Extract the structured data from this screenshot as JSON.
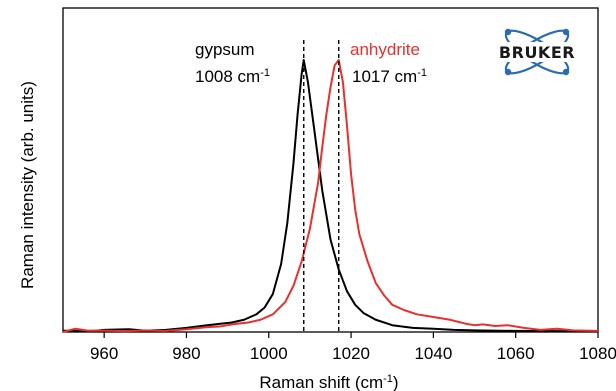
{
  "chart_data": {
    "type": "line",
    "xlabel": "Raman shift (cm",
    "xlabel_sup": "-1",
    "xlabel_tail": ")",
    "ylabel": "Raman intensity (arb. units)",
    "xlim": [
      950,
      1080
    ],
    "ylim": [
      0,
      1.0
    ],
    "x_ticks": [
      960,
      980,
      1000,
      1020,
      1040,
      1060,
      1080
    ],
    "grid": false,
    "series": [
      {
        "name": "gypsum",
        "color": "#000000",
        "points": [
          [
            950,
            0.005
          ],
          [
            956,
            0.002
          ],
          [
            960,
            0.008
          ],
          [
            966,
            0.01
          ],
          [
            970,
            0.005
          ],
          [
            975,
            0.008
          ],
          [
            980,
            0.015
          ],
          [
            985,
            0.025
          ],
          [
            988,
            0.03
          ],
          [
            991,
            0.035
          ],
          [
            994,
            0.045
          ],
          [
            997,
            0.065
          ],
          [
            999,
            0.09
          ],
          [
            1001,
            0.14
          ],
          [
            1003,
            0.25
          ],
          [
            1004.5,
            0.4
          ],
          [
            1006,
            0.62
          ],
          [
            1007,
            0.8
          ],
          [
            1008,
            0.95
          ],
          [
            1008.5,
            1.0
          ],
          [
            1009.5,
            0.92
          ],
          [
            1011,
            0.75
          ],
          [
            1013,
            0.52
          ],
          [
            1015,
            0.34
          ],
          [
            1017,
            0.23
          ],
          [
            1019,
            0.15
          ],
          [
            1021,
            0.1
          ],
          [
            1023,
            0.07
          ],
          [
            1026,
            0.045
          ],
          [
            1030,
            0.025
          ],
          [
            1035,
            0.015
          ],
          [
            1040,
            0.012
          ],
          [
            1045,
            0.008
          ],
          [
            1050,
            0.006
          ],
          [
            1060,
            0.004
          ],
          [
            1070,
            0.003
          ],
          [
            1080,
            0.002
          ]
        ]
      },
      {
        "name": "anhydrite",
        "color": "#e8312f",
        "points": [
          [
            950,
            0.0
          ],
          [
            953,
            0.012
          ],
          [
            956,
            0.005
          ],
          [
            960,
            0.005
          ],
          [
            965,
            0.003
          ],
          [
            970,
            0.006
          ],
          [
            975,
            0.004
          ],
          [
            980,
            0.01
          ],
          [
            985,
            0.018
          ],
          [
            988,
            0.02
          ],
          [
            990,
            0.025
          ],
          [
            992,
            0.03
          ],
          [
            995,
            0.035
          ],
          [
            998,
            0.045
          ],
          [
            1001,
            0.065
          ],
          [
            1004,
            0.11
          ],
          [
            1006,
            0.17
          ],
          [
            1008,
            0.26
          ],
          [
            1010,
            0.38
          ],
          [
            1012,
            0.55
          ],
          [
            1013,
            0.68
          ],
          [
            1014,
            0.8
          ],
          [
            1015,
            0.9
          ],
          [
            1016,
            0.98
          ],
          [
            1017,
            1.0
          ],
          [
            1018,
            0.92
          ],
          [
            1019,
            0.76
          ],
          [
            1020,
            0.58
          ],
          [
            1021,
            0.45
          ],
          [
            1022,
            0.36
          ],
          [
            1024,
            0.26
          ],
          [
            1026,
            0.18
          ],
          [
            1028,
            0.135
          ],
          [
            1030,
            0.1
          ],
          [
            1033,
            0.08
          ],
          [
            1036,
            0.065
          ],
          [
            1040,
            0.055
          ],
          [
            1044,
            0.045
          ],
          [
            1048,
            0.03
          ],
          [
            1050,
            0.025
          ],
          [
            1052,
            0.028
          ],
          [
            1055,
            0.022
          ],
          [
            1058,
            0.025
          ],
          [
            1062,
            0.015
          ],
          [
            1066,
            0.008
          ],
          [
            1070,
            0.012
          ],
          [
            1074,
            0.006
          ],
          [
            1080,
            0.004
          ]
        ]
      }
    ],
    "reference_lines": [
      {
        "x": 1008.5,
        "style": "dashed",
        "color": "#000000"
      },
      {
        "x": 1017,
        "style": "dashed",
        "color": "#000000"
      }
    ],
    "annotations": [
      {
        "id": "gypsum-name",
        "text": "gypsum",
        "color": "#000000"
      },
      {
        "id": "gypsum-peak",
        "text": "1008 cm",
        "sup": "-1",
        "color": "#000000"
      },
      {
        "id": "anhydrite-name",
        "text": "anhydrite",
        "color": "#e8312f"
      },
      {
        "id": "anhydrite-peak",
        "text": "1017 cm",
        "sup": "-1",
        "color": "#000000"
      }
    ]
  },
  "logo": {
    "text": "BRUKER",
    "color": "#2b6cb0"
  }
}
